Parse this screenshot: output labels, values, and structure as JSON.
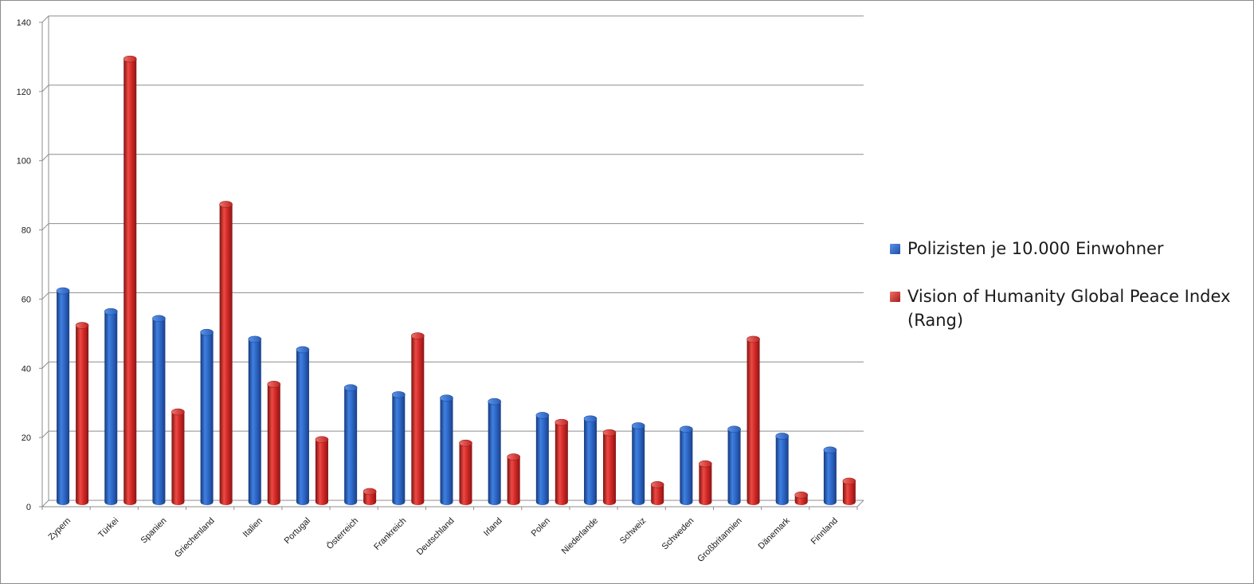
{
  "chart_data": {
    "type": "bar",
    "categories": [
      "Zypern",
      "Türkei",
      "Spanien",
      "Griechenland",
      "Italien",
      "Portugal",
      "Österreich",
      "Frankreich",
      "Deutschland",
      "Irland",
      "Polen",
      "Niederlande",
      "Schweiz",
      "Schweden",
      "Großbritannien",
      "Dänemark",
      "Finnland"
    ],
    "series": [
      {
        "name": "Polizisten je 10.000 Einwohner",
        "color": "#2e67c6",
        "values": [
          61,
          55,
          53,
          49,
          47,
          44,
          33,
          31,
          30,
          29,
          25,
          24,
          22,
          21,
          21,
          19,
          15
        ]
      },
      {
        "name": "Vision of Humanity Global Peace Index (Rang)",
        "color": "#d42a28",
        "values": [
          51,
          128,
          26,
          86,
          34,
          18,
          3,
          48,
          17,
          13,
          23,
          20,
          5,
          11,
          47,
          2,
          6
        ]
      }
    ],
    "ylim": [
      0,
      140
    ],
    "y_ticks": [
      0,
      20,
      40,
      60,
      80,
      100,
      120,
      140
    ],
    "grid": true,
    "legend_position": "right",
    "style": "3d-cylinder",
    "title": "",
    "xlabel": "",
    "ylabel": ""
  }
}
